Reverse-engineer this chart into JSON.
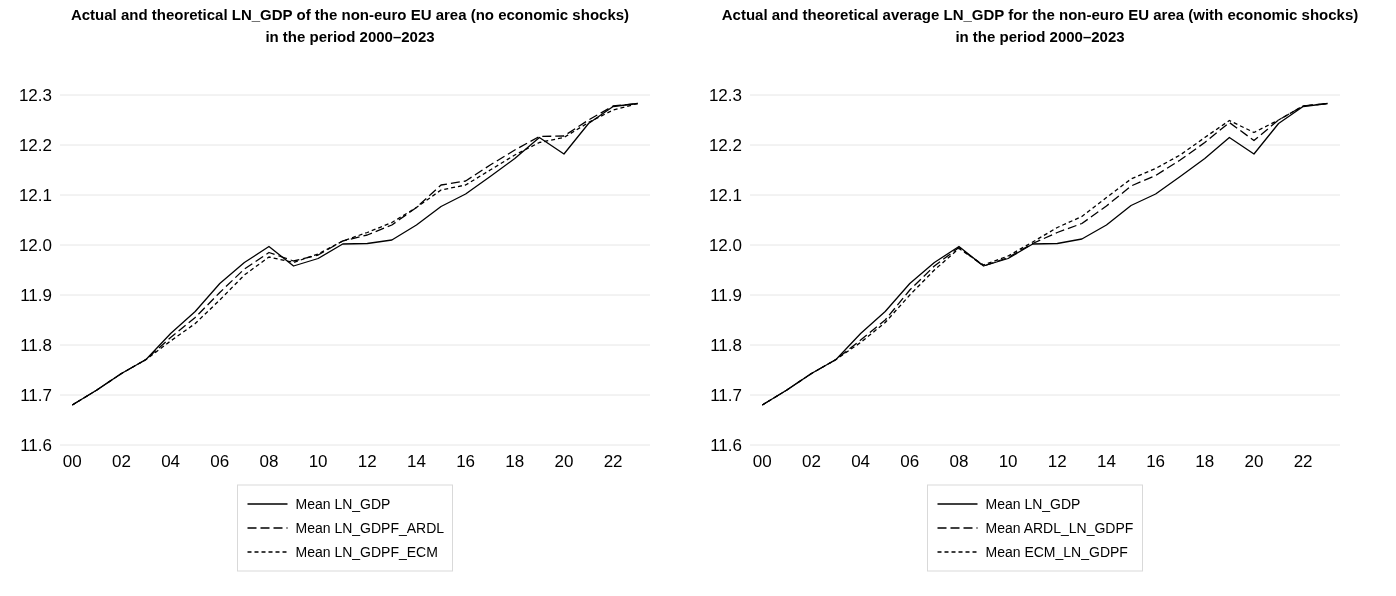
{
  "chart_data": [
    {
      "type": "line",
      "title": "Actual and theoretical LN_GDP of the non-euro EU area (no economic shocks)\nin the period 2000–2023",
      "x": [
        2000,
        2001,
        2002,
        2003,
        2004,
        2005,
        2006,
        2007,
        2008,
        2009,
        2010,
        2011,
        2012,
        2013,
        2014,
        2015,
        2016,
        2017,
        2018,
        2019,
        2020,
        2021,
        2022,
        2023
      ],
      "xlim": [
        1999.5,
        2023.5
      ],
      "xticks": [
        {
          "value": 2000,
          "label": "00"
        },
        {
          "value": 2002,
          "label": "02"
        },
        {
          "value": 2004,
          "label": "04"
        },
        {
          "value": 2006,
          "label": "06"
        },
        {
          "value": 2008,
          "label": "08"
        },
        {
          "value": 2010,
          "label": "10"
        },
        {
          "value": 2012,
          "label": "12"
        },
        {
          "value": 2014,
          "label": "14"
        },
        {
          "value": 2016,
          "label": "16"
        },
        {
          "value": 2018,
          "label": "18"
        },
        {
          "value": 2020,
          "label": "20"
        },
        {
          "value": 2022,
          "label": "22"
        }
      ],
      "ylim": [
        11.6,
        12.3
      ],
      "yticks": [
        {
          "value": 11.6,
          "label": "11.6"
        },
        {
          "value": 11.7,
          "label": "11.7"
        },
        {
          "value": 11.8,
          "label": "11.8"
        },
        {
          "value": 11.9,
          "label": "11.9"
        },
        {
          "value": 12.0,
          "label": "12.0"
        },
        {
          "value": 12.1,
          "label": "12.1"
        },
        {
          "value": 12.2,
          "label": "12.2"
        },
        {
          "value": 12.3,
          "label": "12.3"
        }
      ],
      "grid": "y",
      "legend": "bottom",
      "series": [
        {
          "name": "Mean LN_GDP",
          "color": "#000000",
          "line_style": "solid",
          "values": [
            11.68,
            11.71,
            11.743,
            11.771,
            11.823,
            11.867,
            11.923,
            11.965,
            11.997,
            11.958,
            11.973,
            12.002,
            12.003,
            12.01,
            12.04,
            12.077,
            12.102,
            12.137,
            12.173,
            12.215,
            12.182,
            12.243,
            12.277,
            12.283
          ]
        },
        {
          "name": "Mean LN_GDPF_ARDL",
          "color": "#000000",
          "line_style": "dashed",
          "values": [
            11.68,
            11.71,
            11.743,
            11.771,
            11.815,
            11.855,
            11.905,
            11.952,
            11.985,
            11.968,
            11.98,
            12.008,
            12.02,
            12.04,
            12.075,
            12.12,
            12.128,
            12.16,
            12.19,
            12.217,
            12.218,
            12.25,
            12.278,
            12.283
          ]
        },
        {
          "name": "Mean LN_GDPF_ECM",
          "color": "#000000",
          "line_style": "dotted",
          "values": [
            11.68,
            11.71,
            11.743,
            11.771,
            11.808,
            11.843,
            11.89,
            11.94,
            11.976,
            11.965,
            11.982,
            12.008,
            12.025,
            12.045,
            12.075,
            12.11,
            12.12,
            12.15,
            12.18,
            12.205,
            12.215,
            12.245,
            12.27,
            12.283
          ]
        }
      ]
    },
    {
      "type": "line",
      "title": "Actual and theoretical average LN_GDP for the non-euro EU area (with economic shocks)\nin the period 2000–2023",
      "x": [
        2000,
        2001,
        2002,
        2003,
        2004,
        2005,
        2006,
        2007,
        2008,
        2009,
        2010,
        2011,
        2012,
        2013,
        2014,
        2015,
        2016,
        2017,
        2018,
        2019,
        2020,
        2021,
        2022,
        2023
      ],
      "xlim": [
        1999.5,
        2023.5
      ],
      "xticks": [
        {
          "value": 2000,
          "label": "00"
        },
        {
          "value": 2002,
          "label": "02"
        },
        {
          "value": 2004,
          "label": "04"
        },
        {
          "value": 2006,
          "label": "06"
        },
        {
          "value": 2008,
          "label": "08"
        },
        {
          "value": 2010,
          "label": "10"
        },
        {
          "value": 2012,
          "label": "12"
        },
        {
          "value": 2014,
          "label": "14"
        },
        {
          "value": 2016,
          "label": "16"
        },
        {
          "value": 2018,
          "label": "18"
        },
        {
          "value": 2020,
          "label": "20"
        },
        {
          "value": 2022,
          "label": "22"
        }
      ],
      "ylim": [
        11.6,
        12.3
      ],
      "yticks": [
        {
          "value": 11.6,
          "label": "11.6"
        },
        {
          "value": 11.7,
          "label": "11.7"
        },
        {
          "value": 11.8,
          "label": "11.8"
        },
        {
          "value": 11.9,
          "label": "11.9"
        },
        {
          "value": 12.0,
          "label": "12.0"
        },
        {
          "value": 12.1,
          "label": "12.1"
        },
        {
          "value": 12.2,
          "label": "12.2"
        },
        {
          "value": 12.3,
          "label": "12.3"
        }
      ],
      "grid": "y",
      "legend": "bottom",
      "series": [
        {
          "name": "Mean LN_GDP",
          "color": "#000000",
          "line_style": "solid",
          "values": [
            11.68,
            11.71,
            11.743,
            11.771,
            11.823,
            11.867,
            11.923,
            11.965,
            11.997,
            11.958,
            11.973,
            12.002,
            12.003,
            12.012,
            12.04,
            12.079,
            12.102,
            12.137,
            12.173,
            12.215,
            12.182,
            12.243,
            12.277,
            12.283
          ]
        },
        {
          "name": "Mean ARDL_LN_GDPF",
          "color": "#000000",
          "line_style": "dashed",
          "values": [
            11.68,
            11.71,
            11.743,
            11.771,
            11.81,
            11.85,
            11.91,
            11.958,
            11.995,
            11.958,
            11.975,
            12.003,
            12.025,
            12.043,
            12.078,
            12.118,
            12.139,
            12.17,
            12.205,
            12.245,
            12.209,
            12.25,
            12.278,
            12.283
          ]
        },
        {
          "name": "Mean ECM_LN_GDPF",
          "color": "#000000",
          "line_style": "dotted",
          "values": [
            11.68,
            11.71,
            11.743,
            11.771,
            11.805,
            11.845,
            11.9,
            11.95,
            11.993,
            11.96,
            11.978,
            12.006,
            12.035,
            12.057,
            12.095,
            12.132,
            12.153,
            12.18,
            12.215,
            12.249,
            12.225,
            12.25,
            12.278,
            12.283
          ]
        }
      ]
    }
  ]
}
